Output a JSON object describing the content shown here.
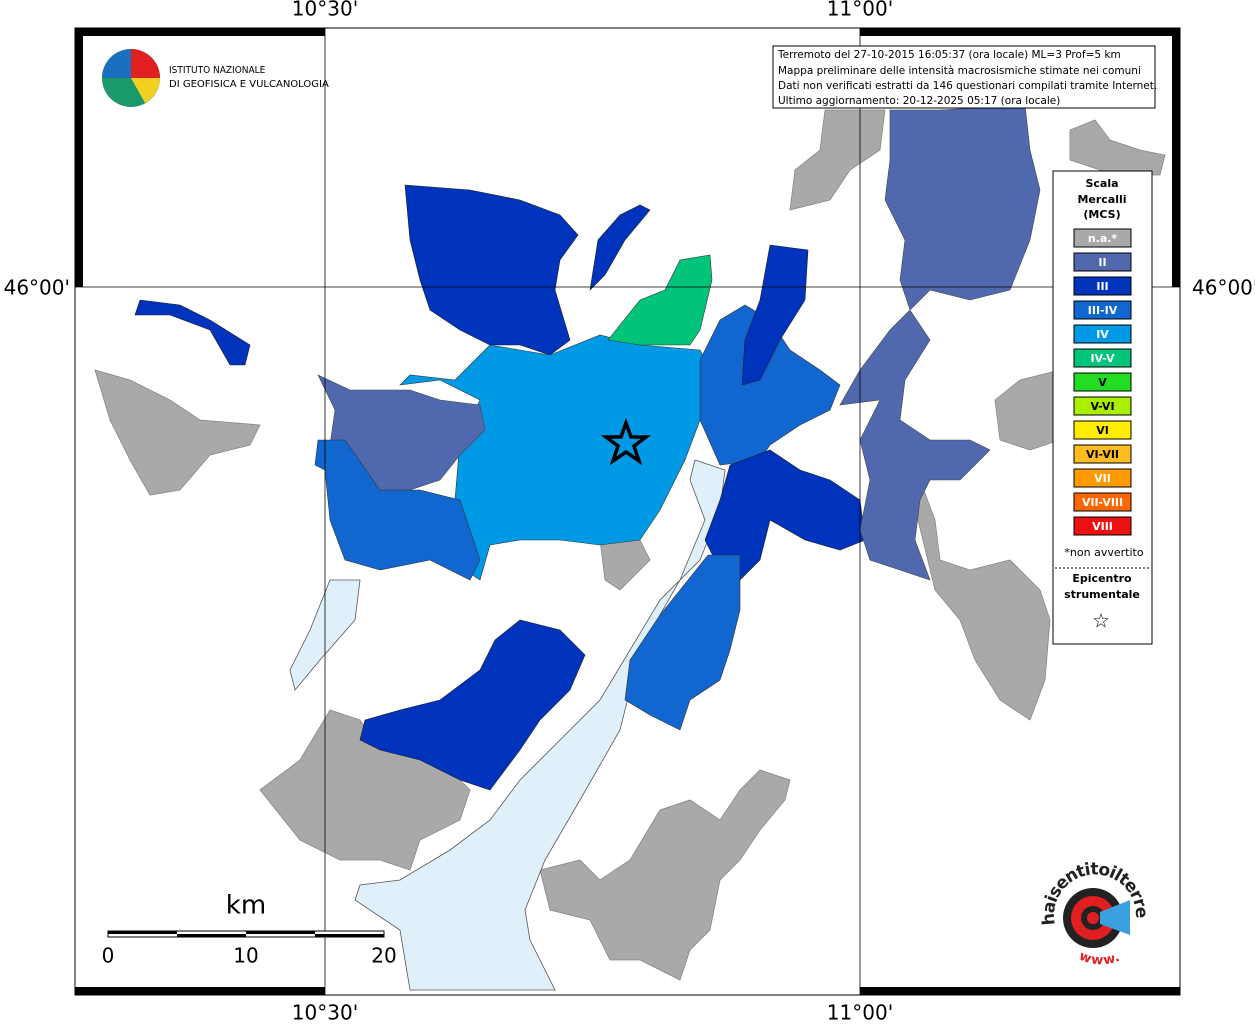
{
  "frame": {
    "top_labels": [
      "10°30'",
      "11°00'"
    ],
    "bottom_labels": [
      "10°30'",
      "11°00'"
    ],
    "left_label": "46°00'",
    "right_label": "46°00'"
  },
  "logo": {
    "line1": "ISTITUTO NAZIONALE",
    "line2": "DI GEOFISICA E VULCANOLOGIA"
  },
  "info_box": {
    "lines": [
      "Terremoto del 27-10-2015 16:05:37 (ora locale) ML=3 Prof=5 km",
      "Mappa preliminare delle intensità macrosismiche stimate nei comuni",
      "Dati non verificati estratti da 146 questionari compilati tramite Internet.",
      "Ultimo aggiornamento: 20-12-2025 05:17 (ora locale)"
    ]
  },
  "legend": {
    "title_lines": [
      "Scala",
      "Mercalli",
      "(MCS)"
    ],
    "items": [
      {
        "label": "n.a.*",
        "color": "#a9a9a9"
      },
      {
        "label": "II",
        "color": "#5068ae"
      },
      {
        "label": "III",
        "color": "#0033bb"
      },
      {
        "label": "III-IV",
        "color": "#1166d0"
      },
      {
        "label": "IV",
        "color": "#0099e6"
      },
      {
        "label": "IV-V",
        "color": "#00c47a"
      },
      {
        "label": "V",
        "color": "#22dd22"
      },
      {
        "label": "V-VI",
        "color": "#aaee00"
      },
      {
        "label": "VI",
        "color": "#ffee00"
      },
      {
        "label": "VI-VII",
        "color": "#ffbb22"
      },
      {
        "label": "VII",
        "color": "#ff9900"
      },
      {
        "label": "VII-VIII",
        "color": "#ff6600"
      },
      {
        "label": "VIII",
        "color": "#ee1111"
      }
    ],
    "note": "*non avvertito",
    "epicenter_lines": [
      "Epicentro",
      "strumentale"
    ],
    "epicenter_symbol": "☆"
  },
  "scale_bar": {
    "unit": "km",
    "ticks": [
      "0",
      "10",
      "20"
    ]
  },
  "watermark": {
    "text": "haisentitoilterremoto.it",
    "prefix": "www."
  }
}
